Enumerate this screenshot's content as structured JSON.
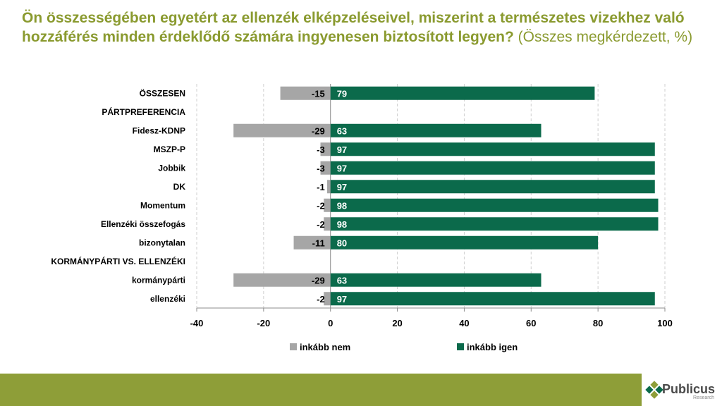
{
  "title": {
    "bold": "Ön összességében egyetért az ellenzék elképzeléseivel, miszerint a természetes vizekhez való hozzáférés minden érdeklődő számára ingyenesen biztosított legyen?",
    "normal": " (Összes megkérdezett, %)"
  },
  "logo": {
    "name": "Publicus",
    "sub": "Research"
  },
  "colors": {
    "neg": "#a6a6a6",
    "pos": "#0b6a4b",
    "title": "#8a9a2f",
    "footer": "#8e9e38"
  },
  "chart_data": {
    "type": "bar",
    "orientation": "horizontal",
    "stacked": "diverging",
    "categories": [
      "ÖSSZESEN",
      "PÁRTPREFERENCIA",
      "Fidesz-KDNP",
      "MSZP-P",
      "Jobbik",
      "DK",
      "Momentum",
      "Ellenzéki összefogás",
      "bizonytalan",
      "KORMÁNYPÁRTI VS. ELLENZÉKI",
      "kormánypárti",
      "ellenzéki"
    ],
    "series": [
      {
        "name": "inkább nem",
        "values": [
          -15,
          null,
          -29,
          -3,
          -3,
          -1,
          -2,
          -2,
          -11,
          null,
          -29,
          -2
        ]
      },
      {
        "name": "inkább igen",
        "values": [
          79,
          null,
          63,
          97,
          97,
          97,
          98,
          98,
          80,
          null,
          63,
          97
        ]
      }
    ],
    "xlim": [
      -40,
      100
    ],
    "xticks": [
      -40,
      -20,
      0,
      20,
      40,
      60,
      80,
      100
    ],
    "legend_position": "bottom",
    "grid": "vertical dashed"
  }
}
